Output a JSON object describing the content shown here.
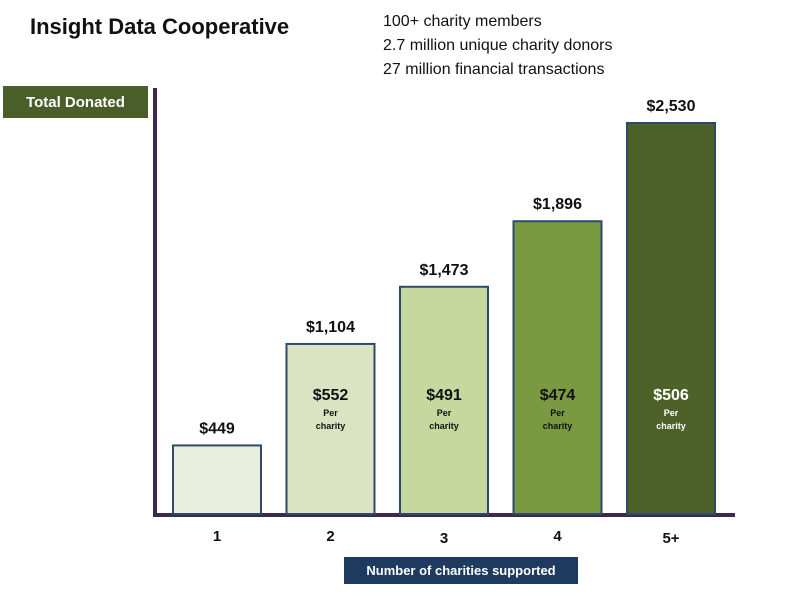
{
  "header": {
    "title": "Insight Data Cooperative",
    "stats": [
      "100+ charity members",
      "2.7 million unique charity donors",
      "27 million financial transactions"
    ]
  },
  "chart_data": {
    "type": "bar",
    "ylabel": "Total Donated",
    "xlabel": "Number of charities supported",
    "categories": [
      "1",
      "2",
      "3",
      "4",
      "5+"
    ],
    "values": [
      449,
      1104,
      1473,
      1896,
      2530
    ],
    "value_labels": [
      "$449",
      "$1,104",
      "$1,473",
      "$1,896",
      "$2,530"
    ],
    "per_charity_values": [
      null,
      "$552",
      "$491",
      "$474",
      "$506"
    ],
    "per_charity_text": [
      "Per",
      "charity"
    ],
    "bar_colors": [
      "#eaeedd",
      "#dbe4c2",
      "#c6d89e",
      "#7a9a42",
      "#4d6128"
    ],
    "per_charity_text_colors": [
      null,
      "#111111",
      "#111111",
      "#111111",
      "#ffffff"
    ],
    "bar_border_color": "#2e4a6b",
    "axis_color": "#3b2a4d",
    "ylim": [
      0,
      2530
    ],
    "grid": false,
    "legend": "none"
  }
}
